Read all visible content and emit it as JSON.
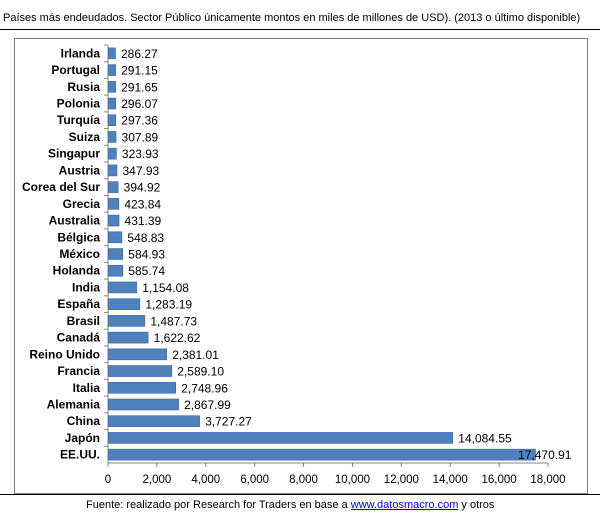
{
  "header": {
    "title": "Países más endeudados. Sector Público únicamente montos en miles de millones de USD). (2013 o último disponible)"
  },
  "footer": {
    "source_prefix": "Fuente: realizado por Research for Traders en base a ",
    "source_link": "www.datosmacro.com",
    "source_suffix": " y otros"
  },
  "colors": {
    "bar": "#4f81bd",
    "bar_edge": "#3c6aa6"
  },
  "chart_data": {
    "type": "bar",
    "orientation": "horizontal",
    "title": "Países más endeudados. Sector Público únicamente montos en miles de millones de USD). (2013 o último disponible)",
    "xlabel": "",
    "ylabel": "",
    "xlim": [
      0,
      18000
    ],
    "xticks": [
      0,
      2000,
      4000,
      6000,
      8000,
      10000,
      12000,
      14000,
      16000,
      18000
    ],
    "xtick_labels": [
      "0",
      "2,000",
      "4,000",
      "6,000",
      "8,000",
      "10,000",
      "12,000",
      "14,000",
      "16,000",
      "18,000"
    ],
    "grid": false,
    "legend": "none",
    "categories": [
      "Irlanda",
      "Portugal",
      "Rusia",
      "Polonia",
      "Turquía",
      "Suiza",
      "Singapur",
      "Austria",
      "Corea del Sur",
      "Grecia",
      "Australia",
      "Bélgica",
      "México",
      "Holanda",
      "India",
      "España",
      "Brasil",
      "Canadá",
      "Reino Unido",
      "Francia",
      "Italia",
      "Alemania",
      "China",
      "Japón",
      "EE.UU."
    ],
    "values": [
      286.27,
      291.15,
      291.65,
      296.07,
      297.36,
      307.89,
      323.93,
      347.93,
      394.92,
      423.84,
      431.39,
      548.83,
      584.93,
      585.74,
      1154.08,
      1283.19,
      1487.73,
      1622.62,
      2381.01,
      2589.1,
      2748.96,
      2867.99,
      3727.27,
      14084.55,
      17470.91
    ],
    "value_labels": [
      "286.27",
      "291.15",
      "291.65",
      "296.07",
      "297.36",
      "307.89",
      "323.93",
      "347.93",
      "394.92",
      "423.84",
      "431.39",
      "548.83",
      "584.93",
      "585.74",
      "1,154.08",
      "1,283.19",
      "1,487.73",
      "1,622.62",
      "2,381.01",
      "2,589.10",
      "2,748.96",
      "2,867.99",
      "3,727.27",
      "14,084.55",
      "17,470.91"
    ]
  }
}
